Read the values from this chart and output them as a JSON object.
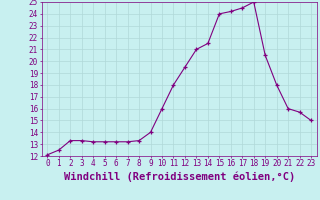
{
  "x": [
    0,
    1,
    2,
    3,
    4,
    5,
    6,
    7,
    8,
    9,
    10,
    11,
    12,
    13,
    14,
    15,
    16,
    17,
    18,
    19,
    20,
    21,
    22,
    23
  ],
  "y": [
    12.1,
    12.5,
    13.3,
    13.3,
    13.2,
    13.2,
    13.2,
    13.2,
    13.3,
    14.0,
    16.0,
    18.0,
    19.5,
    21.0,
    21.5,
    24.0,
    24.2,
    24.5,
    25.0,
    20.5,
    18.0,
    16.0,
    15.7,
    15.0
  ],
  "line_color": "#800080",
  "marker_color": "#800080",
  "bg_color": "#c8f0f0",
  "grid_color": "#b0d8d8",
  "xlabel": "Windchill (Refroidissement éolien,°C)",
  "xlabel_color": "#800080",
  "xlim": [
    -0.5,
    23.5
  ],
  "ylim": [
    12,
    25
  ],
  "yticks": [
    12,
    13,
    14,
    15,
    16,
    17,
    18,
    19,
    20,
    21,
    22,
    23,
    24,
    25
  ],
  "xticks": [
    0,
    1,
    2,
    3,
    4,
    5,
    6,
    7,
    8,
    9,
    10,
    11,
    12,
    13,
    14,
    15,
    16,
    17,
    18,
    19,
    20,
    21,
    22,
    23
  ],
  "tick_color": "#800080",
  "tick_fontsize": 5.5,
  "xlabel_fontsize": 7.5,
  "figsize": [
    3.2,
    2.0
  ],
  "dpi": 100
}
